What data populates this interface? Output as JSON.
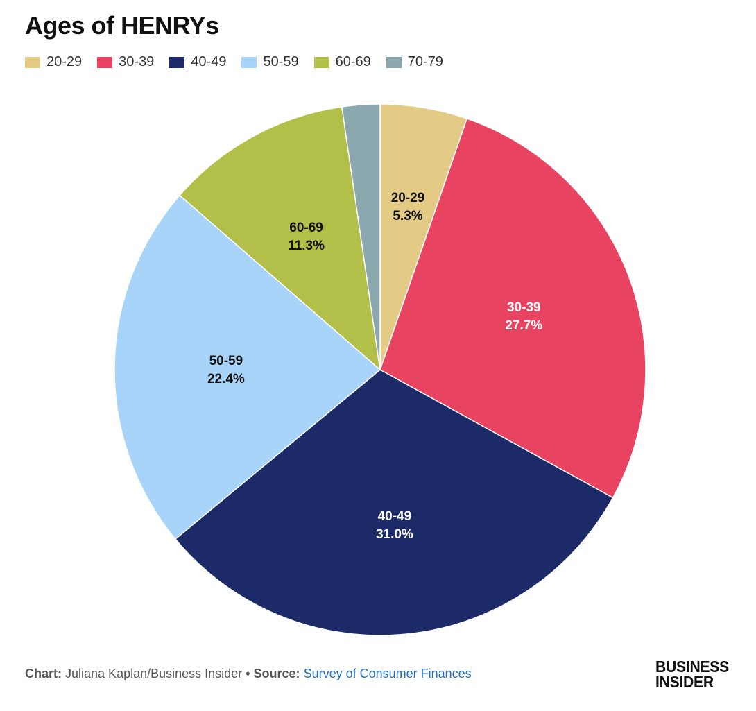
{
  "footer": {
    "chart_label": "Chart:",
    "chart_author": "Juliana Kaplan/Business Insider",
    "bullet": "•",
    "source_label": "Source:",
    "source_name": "Survey of Consumer Finances"
  },
  "brand": {
    "line1": "BUSINESS",
    "line2": "INSIDER"
  },
  "chart_data": {
    "type": "pie",
    "title": "Ages of HENRYs",
    "legend_position": "top-left",
    "categories": [
      "20-29",
      "30-39",
      "40-49",
      "50-59",
      "60-69",
      "70-79"
    ],
    "values": [
      5.3,
      27.7,
      31.0,
      22.4,
      11.3,
      2.3
    ],
    "value_labels": [
      "5.3%",
      "27.7%",
      "31.0%",
      "22.4%",
      "11.3%",
      ""
    ],
    "colors": [
      "#e4cb85",
      "#e84461",
      "#1c2b68",
      "#a9d4f9",
      "#b2bf48",
      "#8aa8ae"
    ],
    "label_colors": [
      "#111111",
      "#ffffff",
      "#ffffff",
      "#111111",
      "#111111",
      "#111111"
    ]
  }
}
